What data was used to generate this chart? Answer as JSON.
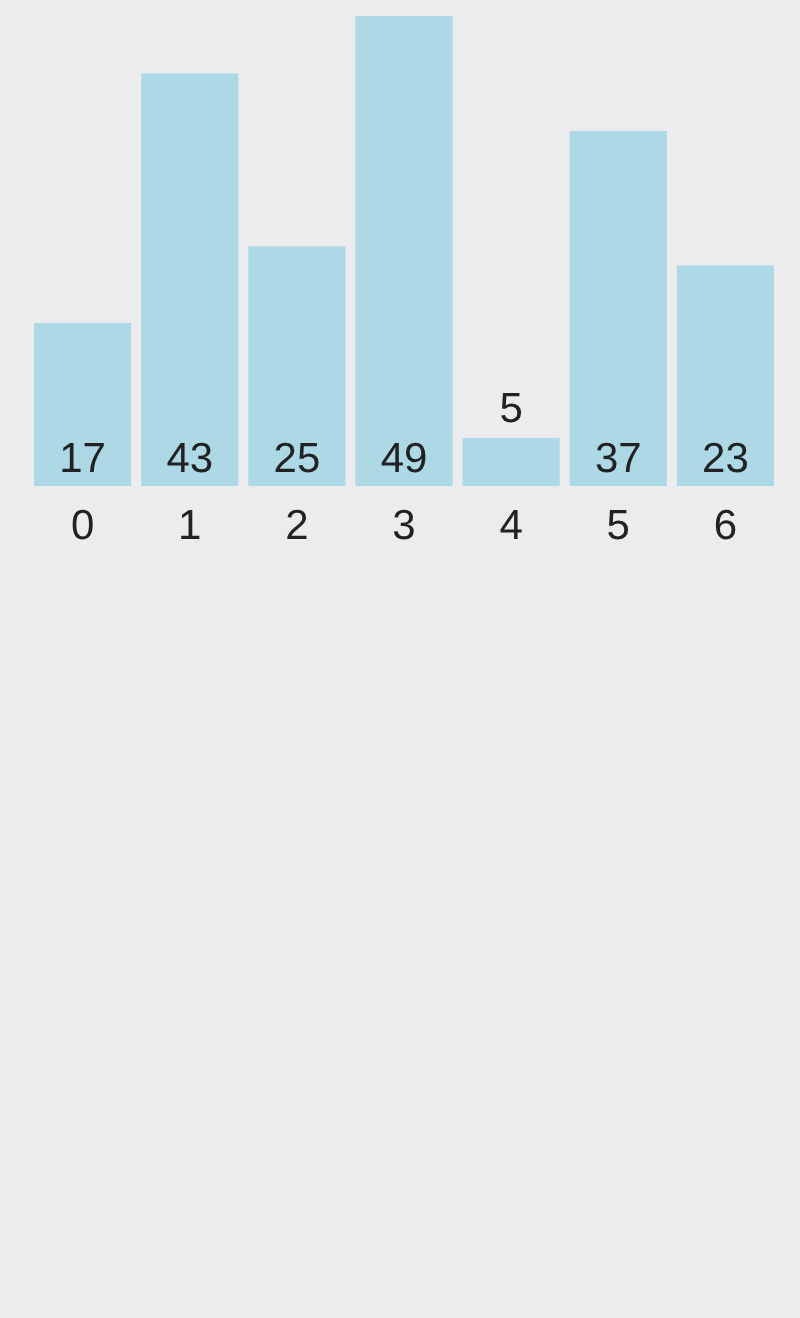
{
  "chart_data": {
    "type": "bar",
    "categories": [
      "0",
      "1",
      "2",
      "3",
      "4",
      "5",
      "6"
    ],
    "values": [
      17,
      43,
      25,
      49,
      5,
      37,
      23
    ],
    "color": "#add8e6",
    "data_labels": true,
    "tick_labels": "x"
  }
}
